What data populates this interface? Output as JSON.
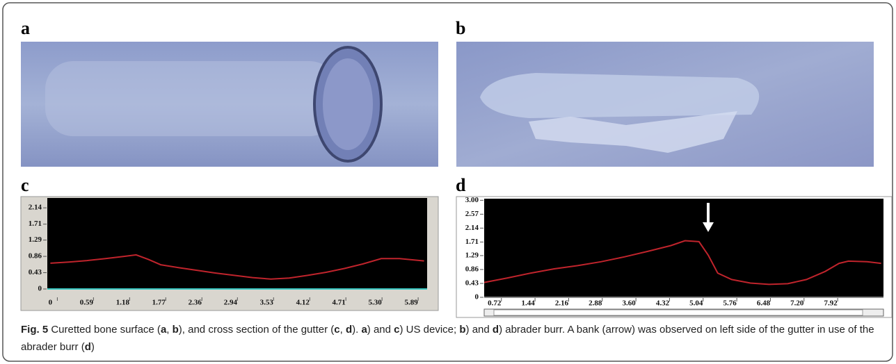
{
  "panels": [
    {
      "label": "a"
    },
    {
      "label": "b"
    }
  ],
  "chart_data": [
    {
      "type": "line",
      "label": "c",
      "color": "#c0242c",
      "xlim": [
        -0.05,
        6.15
      ],
      "ylim": [
        0,
        2.4
      ],
      "xticks": [
        0,
        0.59,
        1.18,
        1.77,
        2.36,
        2.94,
        3.53,
        4.12,
        4.71,
        {
          "value": 5.3,
          "label": "5.30"
        },
        5.89
      ],
      "yticks": [
        0,
        0.43,
        0.86,
        1.29,
        1.71,
        2.14
      ],
      "x": [
        0,
        0.3,
        0.6,
        0.9,
        1.2,
        1.4,
        1.6,
        1.8,
        2.1,
        2.4,
        2.7,
        3.0,
        3.3,
        3.6,
        3.9,
        4.2,
        4.5,
        4.8,
        5.1,
        5.4,
        5.7,
        6.1
      ],
      "values": [
        0.68,
        0.71,
        0.75,
        0.8,
        0.86,
        0.9,
        0.78,
        0.64,
        0.56,
        0.49,
        0.42,
        0.36,
        0.3,
        0.26,
        0.29,
        0.36,
        0.44,
        0.54,
        0.66,
        0.8,
        0.8,
        0.74
      ]
    },
    {
      "type": "line",
      "label": "d",
      "color": "#c0242c",
      "xlim": [
        0.5,
        9.05
      ],
      "ylim": [
        0,
        3.05
      ],
      "xticks": [
        0.72,
        1.44,
        2.16,
        2.88,
        {
          "value": 3.6,
          "label": "3.60"
        },
        4.32,
        5.04,
        5.76,
        6.48,
        {
          "value": 7.2,
          "label": "7.20"
        },
        7.92
      ],
      "yticks": [
        0,
        0.43,
        0.86,
        1.29,
        1.71,
        2.14,
        2.57,
        {
          "value": 3,
          "label": "3.00"
        }
      ],
      "x": [
        0.5,
        1.0,
        1.5,
        2.0,
        2.5,
        3.0,
        3.5,
        4.0,
        4.5,
        4.8,
        5.1,
        5.3,
        5.5,
        5.8,
        6.2,
        6.6,
        7.0,
        7.4,
        7.8,
        8.1,
        8.3,
        8.7,
        9.0
      ],
      "values": [
        0.46,
        0.6,
        0.75,
        0.88,
        0.98,
        1.1,
        1.25,
        1.42,
        1.6,
        1.75,
        1.72,
        1.3,
        0.75,
        0.55,
        0.44,
        0.4,
        0.42,
        0.55,
        0.8,
        1.05,
        1.12,
        1.1,
        1.05
      ]
    }
  ],
  "caption": [
    {
      "text": "Fig. 5",
      "bold": true
    },
    {
      "text": " Curetted bone surface ("
    },
    {
      "text": "a",
      "bold": true
    },
    {
      "text": ", "
    },
    {
      "text": "b",
      "bold": true
    },
    {
      "text": "), and cross section of the gutter ("
    },
    {
      "text": "c",
      "bold": true
    },
    {
      "text": ", "
    },
    {
      "text": "d",
      "bold": true
    },
    {
      "text": "). "
    },
    {
      "text": "a",
      "bold": true
    },
    {
      "text": ") and "
    },
    {
      "text": "c",
      "bold": true
    },
    {
      "text": ") US device; "
    },
    {
      "text": "b",
      "bold": true
    },
    {
      "text": ") and "
    },
    {
      "text": "d",
      "bold": true
    },
    {
      "text": ") abrader burr. A bank (arrow) was observed on left side of the gutter in use of the abrader burr ("
    },
    {
      "text": "d",
      "bold": true
    },
    {
      "text": ")"
    }
  ]
}
